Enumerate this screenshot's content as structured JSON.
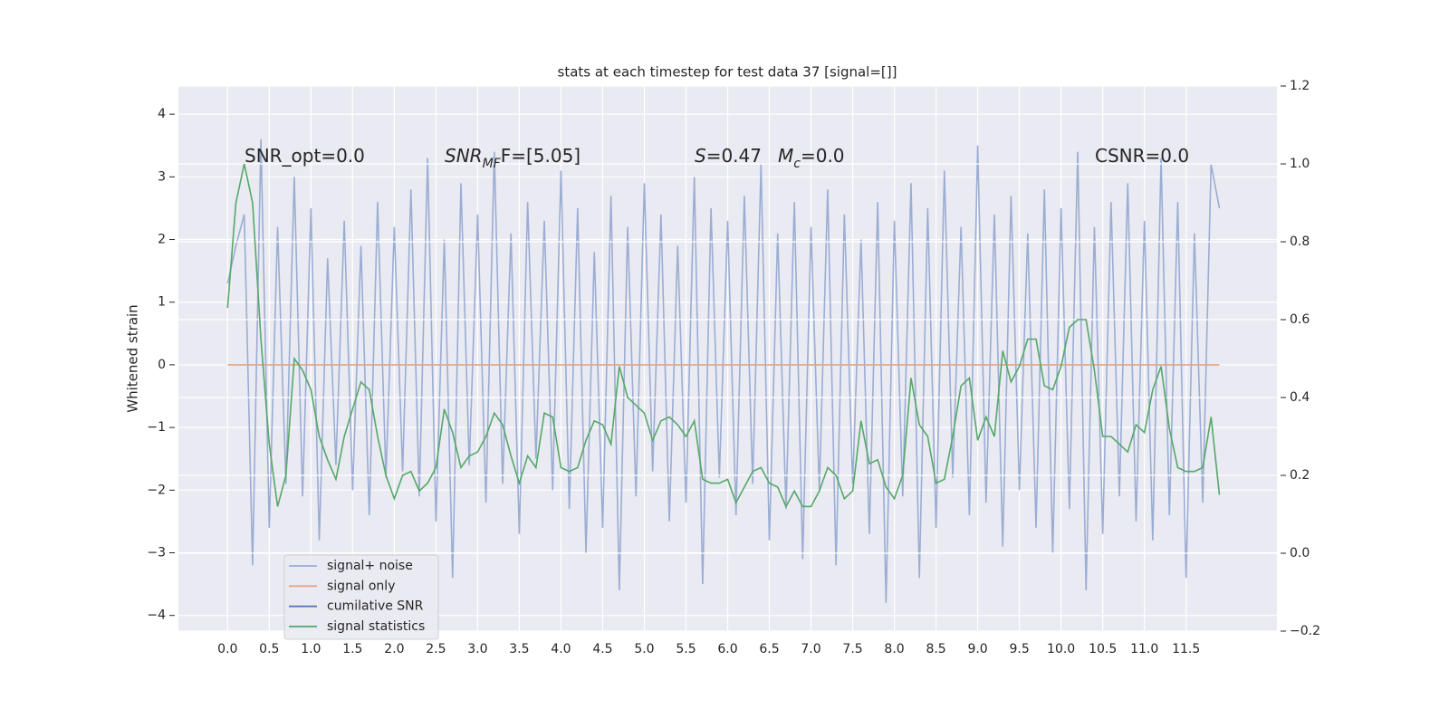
{
  "chart_data": {
    "type": "line",
    "title": "stats at each timestep for test data 37 [signal=[]]",
    "ylabel": "Whitened strain",
    "x": [
      0,
      0.1,
      0.2,
      0.3,
      0.4,
      0.5,
      0.6,
      0.7,
      0.8,
      0.9,
      1,
      1.1,
      1.2,
      1.3,
      1.4,
      1.5,
      1.6,
      1.7,
      1.8,
      1.9,
      2,
      2.1,
      2.2,
      2.3,
      2.4,
      2.5,
      2.6,
      2.7,
      2.8,
      2.9,
      3,
      3.1,
      3.2,
      3.3,
      3.4,
      3.5,
      3.6,
      3.7,
      3.8,
      3.9,
      4,
      4.1,
      4.2,
      4.3,
      4.4,
      4.5,
      4.6,
      4.7,
      4.8,
      4.9,
      5,
      5.1,
      5.2,
      5.3,
      5.4,
      5.5,
      5.6,
      5.7,
      5.8,
      5.9,
      6,
      6.1,
      6.2,
      6.3,
      6.4,
      6.5,
      6.6,
      6.7,
      6.8,
      6.9,
      7,
      7.1,
      7.2,
      7.3,
      7.4,
      7.5,
      7.6,
      7.7,
      7.8,
      7.9,
      8,
      8.1,
      8.2,
      8.3,
      8.4,
      8.5,
      8.6,
      8.7,
      8.8,
      8.9,
      9,
      9.1,
      9.2,
      9.3,
      9.4,
      9.5,
      9.6,
      9.7,
      9.8,
      9.9,
      10,
      10.1,
      10.2,
      10.3,
      10.4,
      10.5,
      10.6,
      10.7,
      10.8,
      10.9,
      11,
      11.1,
      11.2,
      11.3,
      11.4,
      11.5,
      11.6,
      11.7,
      11.8,
      11.9
    ],
    "xlim": [
      -0.59,
      12.59
    ],
    "xticks": [
      {
        "value": 0,
        "label": "0.0"
      },
      0.5,
      {
        "value": 1,
        "label": "1.0"
      },
      1.5,
      {
        "value": 2,
        "label": "2.0"
      },
      2.5,
      {
        "value": 3,
        "label": "3.0"
      },
      3.5,
      {
        "value": 4,
        "label": "4.0"
      },
      4.5,
      {
        "value": 5,
        "label": "5.0"
      },
      5.5,
      {
        "value": 6,
        "label": "6.0"
      },
      6.5,
      {
        "value": 7,
        "label": "7.0"
      },
      7.5,
      {
        "value": 8,
        "label": "8.0"
      },
      8.5,
      {
        "value": 9,
        "label": "9.0"
      },
      9.5,
      {
        "value": 10,
        "label": "10.0"
      },
      10.5,
      {
        "value": 11,
        "label": "11.0"
      },
      11.5
    ],
    "ylim": [
      -4.25,
      4.45
    ],
    "yticks": [
      {
        "value": -4,
        "label": "−4"
      },
      {
        "value": -3,
        "label": "−3"
      },
      {
        "value": -2,
        "label": "−2"
      },
      {
        "value": -1,
        "label": "−1"
      },
      0,
      1,
      2,
      3,
      4
    ],
    "y2lim": [
      -0.2,
      1.2
    ],
    "y2ticks": [
      {
        "value": -0.2,
        "label": "−0.2"
      },
      {
        "value": 0,
        "label": "0.0"
      },
      0.2,
      0.4,
      0.6,
      0.8,
      {
        "value": 1,
        "label": "1.0"
      },
      1.2
    ],
    "grid": true,
    "legend": "lower left",
    "series": [
      {
        "name": "signal+ noise",
        "color": "#9aadd3",
        "values": [
          1.3,
          1.9,
          2.4,
          -3.2,
          3.6,
          -2.6,
          2.2,
          -1.9,
          3.0,
          -2.1,
          2.5,
          -2.8,
          1.7,
          -1.6,
          2.3,
          -2.0,
          1.9,
          -2.4,
          2.6,
          -1.8,
          2.2,
          -1.7,
          2.8,
          -2.1,
          3.3,
          -2.5,
          2.0,
          -3.4,
          2.9,
          -1.6,
          2.4,
          -2.2,
          3.4,
          -1.9,
          2.1,
          -2.7,
          2.6,
          -1.5,
          2.3,
          -2.0,
          3.1,
          -2.3,
          2.5,
          -3.0,
          1.8,
          -2.6,
          2.7,
          -3.6,
          2.2,
          -2.1,
          2.9,
          -1.7,
          2.4,
          -2.5,
          1.9,
          -2.2,
          3.0,
          -3.5,
          2.5,
          -1.8,
          2.3,
          -2.4,
          2.7,
          -1.9,
          3.2,
          -2.8,
          2.1,
          -2.3,
          2.6,
          -3.1,
          2.2,
          -2.0,
          2.8,
          -3.2,
          2.4,
          -1.9,
          2.0,
          -2.7,
          2.6,
          -3.8,
          2.3,
          -2.1,
          2.9,
          -3.4,
          2.5,
          -2.6,
          3.1,
          -1.8,
          2.2,
          -2.4,
          3.5,
          -2.2,
          2.4,
          -2.9,
          2.7,
          -2.0,
          2.1,
          -2.6,
          2.8,
          -3.0,
          2.5,
          -2.3,
          3.4,
          -3.6,
          2.2,
          -2.7,
          2.6,
          -2.1,
          2.9,
          -2.5,
          2.3,
          -2.8,
          3.3,
          -2.4,
          2.6,
          -3.4,
          2.1,
          -2.2,
          3.2,
          2.5
        ]
      },
      {
        "name": "signal only",
        "color": "#e3a58a",
        "values": [
          0,
          0,
          0,
          0,
          0,
          0,
          0,
          0,
          0,
          0,
          0,
          0,
          0,
          0,
          0,
          0,
          0,
          0,
          0,
          0,
          0,
          0,
          0,
          0,
          0,
          0,
          0,
          0,
          0,
          0,
          0,
          0,
          0,
          0,
          0,
          0,
          0,
          0,
          0,
          0,
          0,
          0,
          0,
          0,
          0,
          0,
          0,
          0,
          0,
          0,
          0,
          0,
          0,
          0,
          0,
          0,
          0,
          0,
          0,
          0,
          0,
          0,
          0,
          0,
          0,
          0,
          0,
          0,
          0,
          0,
          0,
          0,
          0,
          0,
          0,
          0,
          0,
          0,
          0,
          0,
          0,
          0,
          0,
          0,
          0,
          0,
          0,
          0,
          0,
          0,
          0,
          0,
          0,
          0,
          0,
          0,
          0,
          0,
          0,
          0,
          0,
          0,
          0,
          0,
          0,
          0,
          0,
          0,
          0,
          0,
          0,
          0,
          0,
          0,
          0,
          0,
          0,
          0,
          0,
          0
        ]
      },
      {
        "name": "cumilative SNR",
        "color": "#4c72b0"
      },
      {
        "name": "signal statistics",
        "color": "#55a868",
        "axis": "y2",
        "values": [
          0.63,
          0.9,
          1.0,
          0.9,
          0.55,
          0.28,
          0.12,
          0.2,
          0.5,
          0.47,
          0.42,
          0.3,
          0.24,
          0.19,
          0.3,
          0.37,
          0.44,
          0.42,
          0.3,
          0.2,
          0.14,
          0.2,
          0.21,
          0.16,
          0.18,
          0.22,
          0.37,
          0.31,
          0.22,
          0.25,
          0.26,
          0.3,
          0.36,
          0.33,
          0.25,
          0.18,
          0.25,
          0.22,
          0.36,
          0.35,
          0.22,
          0.21,
          0.22,
          0.29,
          0.34,
          0.33,
          0.28,
          0.48,
          0.4,
          0.38,
          0.36,
          0.29,
          0.34,
          0.35,
          0.33,
          0.3,
          0.34,
          0.19,
          0.18,
          0.18,
          0.19,
          0.13,
          0.17,
          0.21,
          0.22,
          0.18,
          0.17,
          0.12,
          0.16,
          0.12,
          0.12,
          0.16,
          0.22,
          0.2,
          0.14,
          0.16,
          0.34,
          0.23,
          0.24,
          0.17,
          0.14,
          0.2,
          0.45,
          0.33,
          0.3,
          0.18,
          0.19,
          0.3,
          0.43,
          0.45,
          0.29,
          0.35,
          0.3,
          0.52,
          0.44,
          0.48,
          0.55,
          0.55,
          0.43,
          0.42,
          0.48,
          0.58,
          0.6,
          0.6,
          0.47,
          0.3,
          0.3,
          0.28,
          0.26,
          0.33,
          0.31,
          0.42,
          0.48,
          0.32,
          0.22,
          0.21,
          0.21,
          0.22,
          0.35,
          0.15
        ]
      }
    ],
    "annotations": [
      [
        {
          "text": "SNR_opt=0.0"
        }
      ],
      [
        {
          "text": "SNR",
          "italic": true
        },
        {
          "text": "MF",
          "italic": true,
          "sub": true
        },
        {
          "text": "F=[5.05]"
        }
      ],
      [
        {
          "text": "S",
          "italic": true
        },
        {
          "text": "=0.47"
        }
      ],
      [
        {
          "text": "M",
          "italic": true
        },
        {
          "text": "c",
          "italic": true,
          "sub": true
        },
        {
          "text": "=0.0"
        }
      ],
      [
        {
          "text": "CSNR=0.0"
        }
      ]
    ]
  }
}
